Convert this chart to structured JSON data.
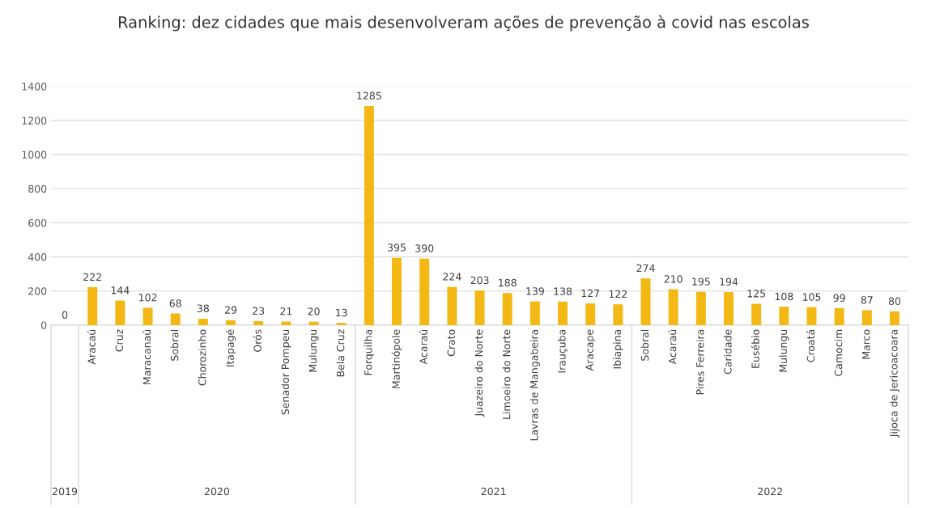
{
  "chart_data": {
    "type": "bar",
    "title": "Ranking: dez cidades que mais desenvolveram ações de prevenção à covid nas escolas",
    "categories": [
      null,
      "Aracaú",
      "Cruz",
      "Maracanaú",
      "Sobral",
      "Chorozinho",
      "Itapagé",
      "Orós",
      "Senador Pompeu",
      "Mulungu",
      "Bela Cruz",
      "Forquilha",
      "Martinópole",
      "Acaraú",
      "Crato",
      "Juazeiro do Norte",
      "Limoeiro do Norte",
      "Lavras de Mangabeira",
      "Irauçuba",
      "Aracape",
      "Ibiapina",
      "Sobral",
      "Acaraú",
      "Pires Ferreira",
      "Caridade",
      "Eusébio",
      "Mulungu",
      "Croatá",
      "Camocim",
      "Marco",
      "Jijoca de Jericoacoara"
    ],
    "values": [
      0,
      222,
      144,
      102,
      68,
      38,
      29,
      23,
      21,
      20,
      13,
      1285,
      395,
      390,
      224,
      203,
      188,
      139,
      138,
      127,
      122,
      274,
      210,
      195,
      194,
      125,
      108,
      105,
      99,
      87,
      80
    ],
    "color": "#f4b814",
    "ylim": [
      0,
      1400
    ],
    "yticks": [
      0,
      200,
      400,
      600,
      800,
      1000,
      1200,
      1400
    ],
    "grid": "y",
    "data_labels": true,
    "annotations": [
      "2019",
      "2020",
      "2021",
      "2022"
    ]
  }
}
